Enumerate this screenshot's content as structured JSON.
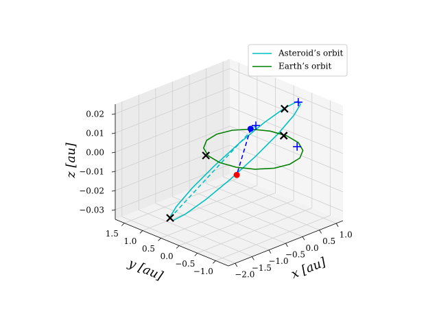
{
  "chart_data": {
    "type": "line3d",
    "xlabel": "x [au]",
    "ylabel": "y [au]",
    "zlabel": "z [au]",
    "xlim": [
      -2.2,
      1.2
    ],
    "ylim": [
      -1.35,
      1.75
    ],
    "zlim": [
      -0.035,
      0.025
    ],
    "xticks": [
      {
        "value": -2.0,
        "label": "−2.0"
      },
      {
        "value": -1.5,
        "label": "−1.5"
      },
      {
        "value": -1.0,
        "label": "−1.0"
      },
      {
        "value": -0.5,
        "label": "−0.5"
      },
      {
        "value": 0.0,
        "label": "0.0"
      },
      0.5,
      {
        "value": 1.0,
        "label": "1.0"
      }
    ],
    "yticks": [
      {
        "value": -1.0,
        "label": "−1.0"
      },
      {
        "value": -0.5,
        "label": "−0.5"
      },
      {
        "value": 0.0,
        "label": "0.0"
      },
      0.5,
      {
        "value": 1.0,
        "label": "1.0"
      },
      1.5
    ],
    "zticks": [
      {
        "value": -0.03,
        "label": "−0.03"
      },
      {
        "value": -0.02,
        "label": "−0.02"
      },
      {
        "value": -0.01,
        "label": "−0.01"
      },
      {
        "value": 0.0,
        "label": "0.00"
      },
      0.01,
      0.02
    ],
    "grid": true,
    "legend": "upper right",
    "series": [
      {
        "name": "Asteroid’s orbit",
        "color": "#00bfbf",
        "kind": "line",
        "linestyle": "solid",
        "x": [
          0.96,
          0.903,
          0.66,
          0.266,
          -0.218,
          -0.718,
          -1.158,
          -1.471,
          -1.61,
          -1.553,
          -1.31,
          -0.916,
          -0.432,
          0.068,
          0.508,
          0.821,
          0.96
        ],
        "y": [
          -0.41,
          -0.277,
          -0.071,
          0.175,
          0.426,
          0.643,
          0.791,
          0.851,
          0.81,
          0.677,
          0.471,
          0.225,
          -0.026,
          -0.243,
          -0.391,
          -0.451,
          -0.41
        ],
        "z": [
          0.02,
          0.0135,
          0.004,
          -0.0068,
          -0.0175,
          -0.0264,
          -0.032,
          -0.0337,
          -0.031,
          -0.0245,
          -0.015,
          -0.0042,
          0.0065,
          0.0154,
          0.021,
          0.0227,
          0.02
        ]
      },
      {
        "name": "Earth’s orbit",
        "color": "#008000",
        "kind": "line",
        "linestyle": "solid",
        "x": [
          1,
          0.924,
          0.707,
          0.383,
          0,
          -0.383,
          -0.707,
          -0.924,
          -1,
          -0.924,
          -0.707,
          -0.383,
          0,
          0.383,
          0.707,
          0.924,
          1
        ],
        "y": [
          0,
          0.383,
          0.707,
          0.924,
          1,
          0.924,
          0.707,
          0.383,
          0,
          -0.383,
          -0.707,
          -0.924,
          -1,
          -0.924,
          -0.707,
          -0.383,
          0
        ],
        "z": [
          0,
          0,
          0,
          0,
          0,
          0,
          0,
          0,
          0,
          0,
          0,
          0,
          0,
          0,
          0,
          0,
          0
        ]
      },
      {
        "color": "#00bfbf",
        "kind": "line",
        "linestyle": "dashed",
        "x": [
          -1.6,
          -0.15
        ],
        "y": [
          0.8,
          -0.21
        ],
        "z": [
          -0.031,
          0.015
        ]
      },
      {
        "color": "#0000ff",
        "kind": "line",
        "linestyle": "dashed",
        "x": [
          -0.35,
          -0.49
        ],
        "y": [
          -0.25,
          0.0
        ],
        "z": [
          0.015,
          -0.01
        ]
      },
      {
        "color": "#cc0000",
        "kind": "scatter",
        "marker": "x",
        "x": [
          0.96,
          -1.6
        ],
        "y": [
          0.05,
          0.8
        ],
        "z": [
          0,
          -0.031
        ]
      },
      {
        "color": "#000000",
        "kind": "scatter",
        "marker": "x",
        "x": [
          -0.95,
          0.96,
          0.55,
          -1.6
        ],
        "y": [
          0.42,
          0.05,
          -0.35,
          0.8
        ],
        "z": [
          0,
          0,
          0.02,
          -0.031
        ]
      },
      {
        "color": "#0000ff",
        "kind": "scatter",
        "marker": "plus",
        "x": [
          0.86,
          -0.15,
          0.76
        ],
        "y": [
          -0.44,
          -0.21,
          -0.5
        ],
        "z": [
          0.022,
          0.015,
          0
        ]
      },
      {
        "color": "#0000ff",
        "kind": "scatter",
        "marker": "dot",
        "x": [
          -0.35
        ],
        "y": [
          -0.25
        ],
        "z": [
          0.015
        ]
      },
      {
        "color": "#ff0000",
        "kind": "scatter",
        "marker": "dot",
        "x": [
          -0.49
        ],
        "y": [
          0.0
        ],
        "z": [
          -0.01
        ]
      }
    ]
  }
}
